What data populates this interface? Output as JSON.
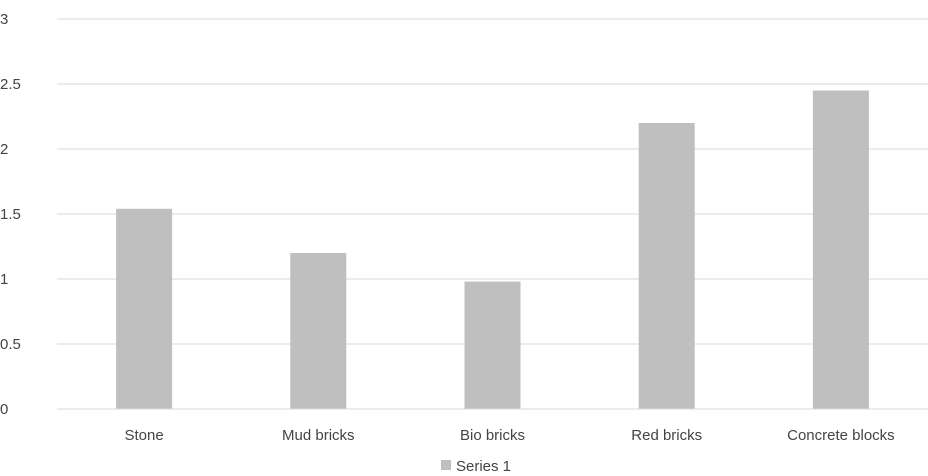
{
  "chart_data": {
    "type": "bar",
    "categories": [
      "Stone",
      "Mud bricks",
      "Bio bricks",
      "Red bricks",
      "Concrete blocks"
    ],
    "series": [
      {
        "name": "Series 1",
        "values": [
          1.54,
          1.2,
          0.98,
          2.2,
          2.45
        ],
        "color": "#bfbfbf"
      }
    ],
    "ylim": [
      0,
      3
    ],
    "yticks": [
      "0",
      "0.5",
      "1",
      "1.5",
      "2",
      "2.5",
      "3"
    ],
    "grid": true,
    "gridColor": "#d9d9d9",
    "legend": "bottom"
  }
}
